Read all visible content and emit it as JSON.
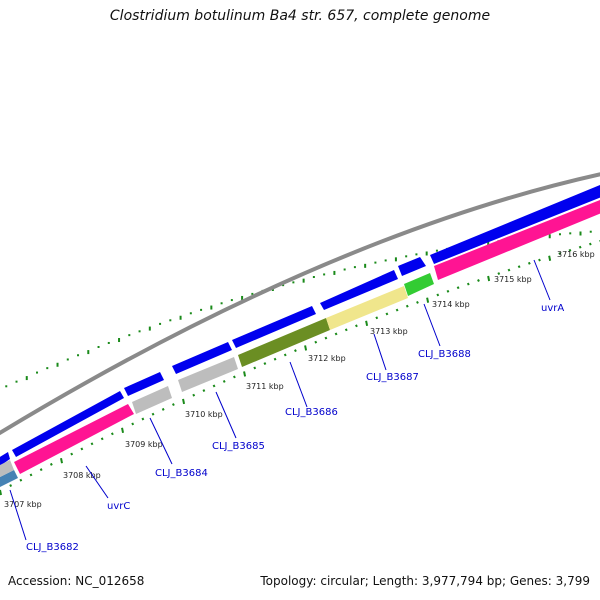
{
  "header": {
    "title": "Clostridium botulinum Ba4 str. 657, complete genome"
  },
  "footer": {
    "accession": "Accession: NC_012658",
    "summary": "Topology: circular; Length: 3,977,794 bp; Genes: 3,799"
  },
  "colors": {
    "backbone": "#8a8a8a",
    "cds_forward": "#0000ee",
    "cds_reverse_highlight": "#ff1493",
    "gray_gene": "#bdbdbd",
    "olive_gene": "#6b8e23",
    "khaki_gene": "#f0e68c",
    "green_gene": "#33cc33",
    "steel_gene": "#4682b4",
    "tick": "#1a8a1a",
    "label": "#0000cc"
  },
  "kbp_ticks": [
    "3707 kbp",
    "3708 kbp",
    "3709 kbp",
    "3710 kbp",
    "3711 kbp",
    "3712 kbp",
    "3713 kbp",
    "3714 kbp",
    "3715 kbp",
    "3716 kbp"
  ],
  "gene_labels": [
    "CLJ_B3682",
    "uvrC",
    "CLJ_B3684",
    "CLJ_B3685",
    "CLJ_B3686",
    "CLJ_B3687",
    "CLJ_B3688",
    "uvrA"
  ]
}
